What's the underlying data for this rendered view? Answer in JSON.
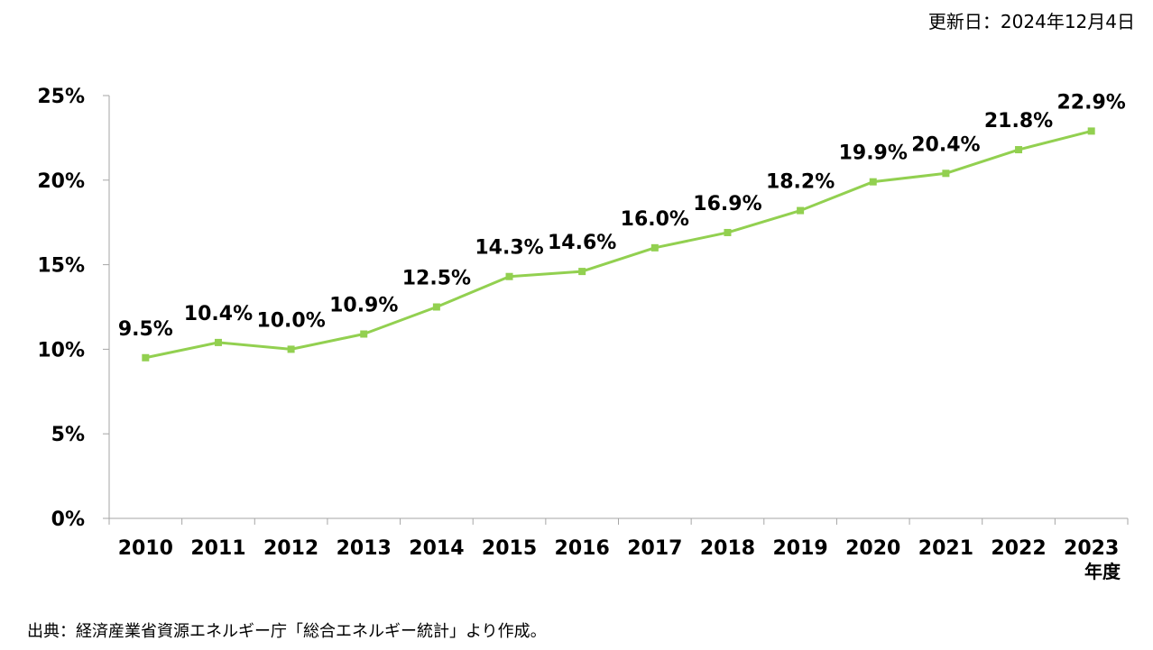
{
  "header": {
    "update_date": "更新日：2024年12月4日"
  },
  "footer": {
    "source": "出典：経済産業省資源エネルギー庁「総合エネルギー統計」より作成。"
  },
  "chart_data": {
    "type": "line",
    "title": "",
    "xlabel": "年度",
    "ylabel": "",
    "categories": [
      "2010",
      "2011",
      "2012",
      "2013",
      "2014",
      "2015",
      "2016",
      "2017",
      "2018",
      "2019",
      "2020",
      "2021",
      "2022",
      "2023"
    ],
    "series": [
      {
        "values": [
          9.5,
          10.4,
          10.0,
          10.9,
          12.5,
          14.3,
          14.6,
          16.0,
          16.9,
          18.2,
          19.9,
          20.4,
          21.8,
          22.9
        ],
        "labels": [
          "9.5%",
          "10.4%",
          "10.0%",
          "10.9%",
          "12.5%",
          "14.3%",
          "14.6%",
          "16.0%",
          "16.9%",
          "18.2%",
          "19.9%",
          "20.4%",
          "21.8%",
          "22.9%"
        ]
      }
    ],
    "ylim": [
      0,
      25
    ],
    "yticks": [
      0,
      5,
      10,
      15,
      20,
      25
    ],
    "ytick_labels": [
      "0%",
      "5%",
      "10%",
      "15%",
      "20%",
      "25%"
    ],
    "grid": false,
    "legend": "none",
    "line_color": "#92d050"
  }
}
